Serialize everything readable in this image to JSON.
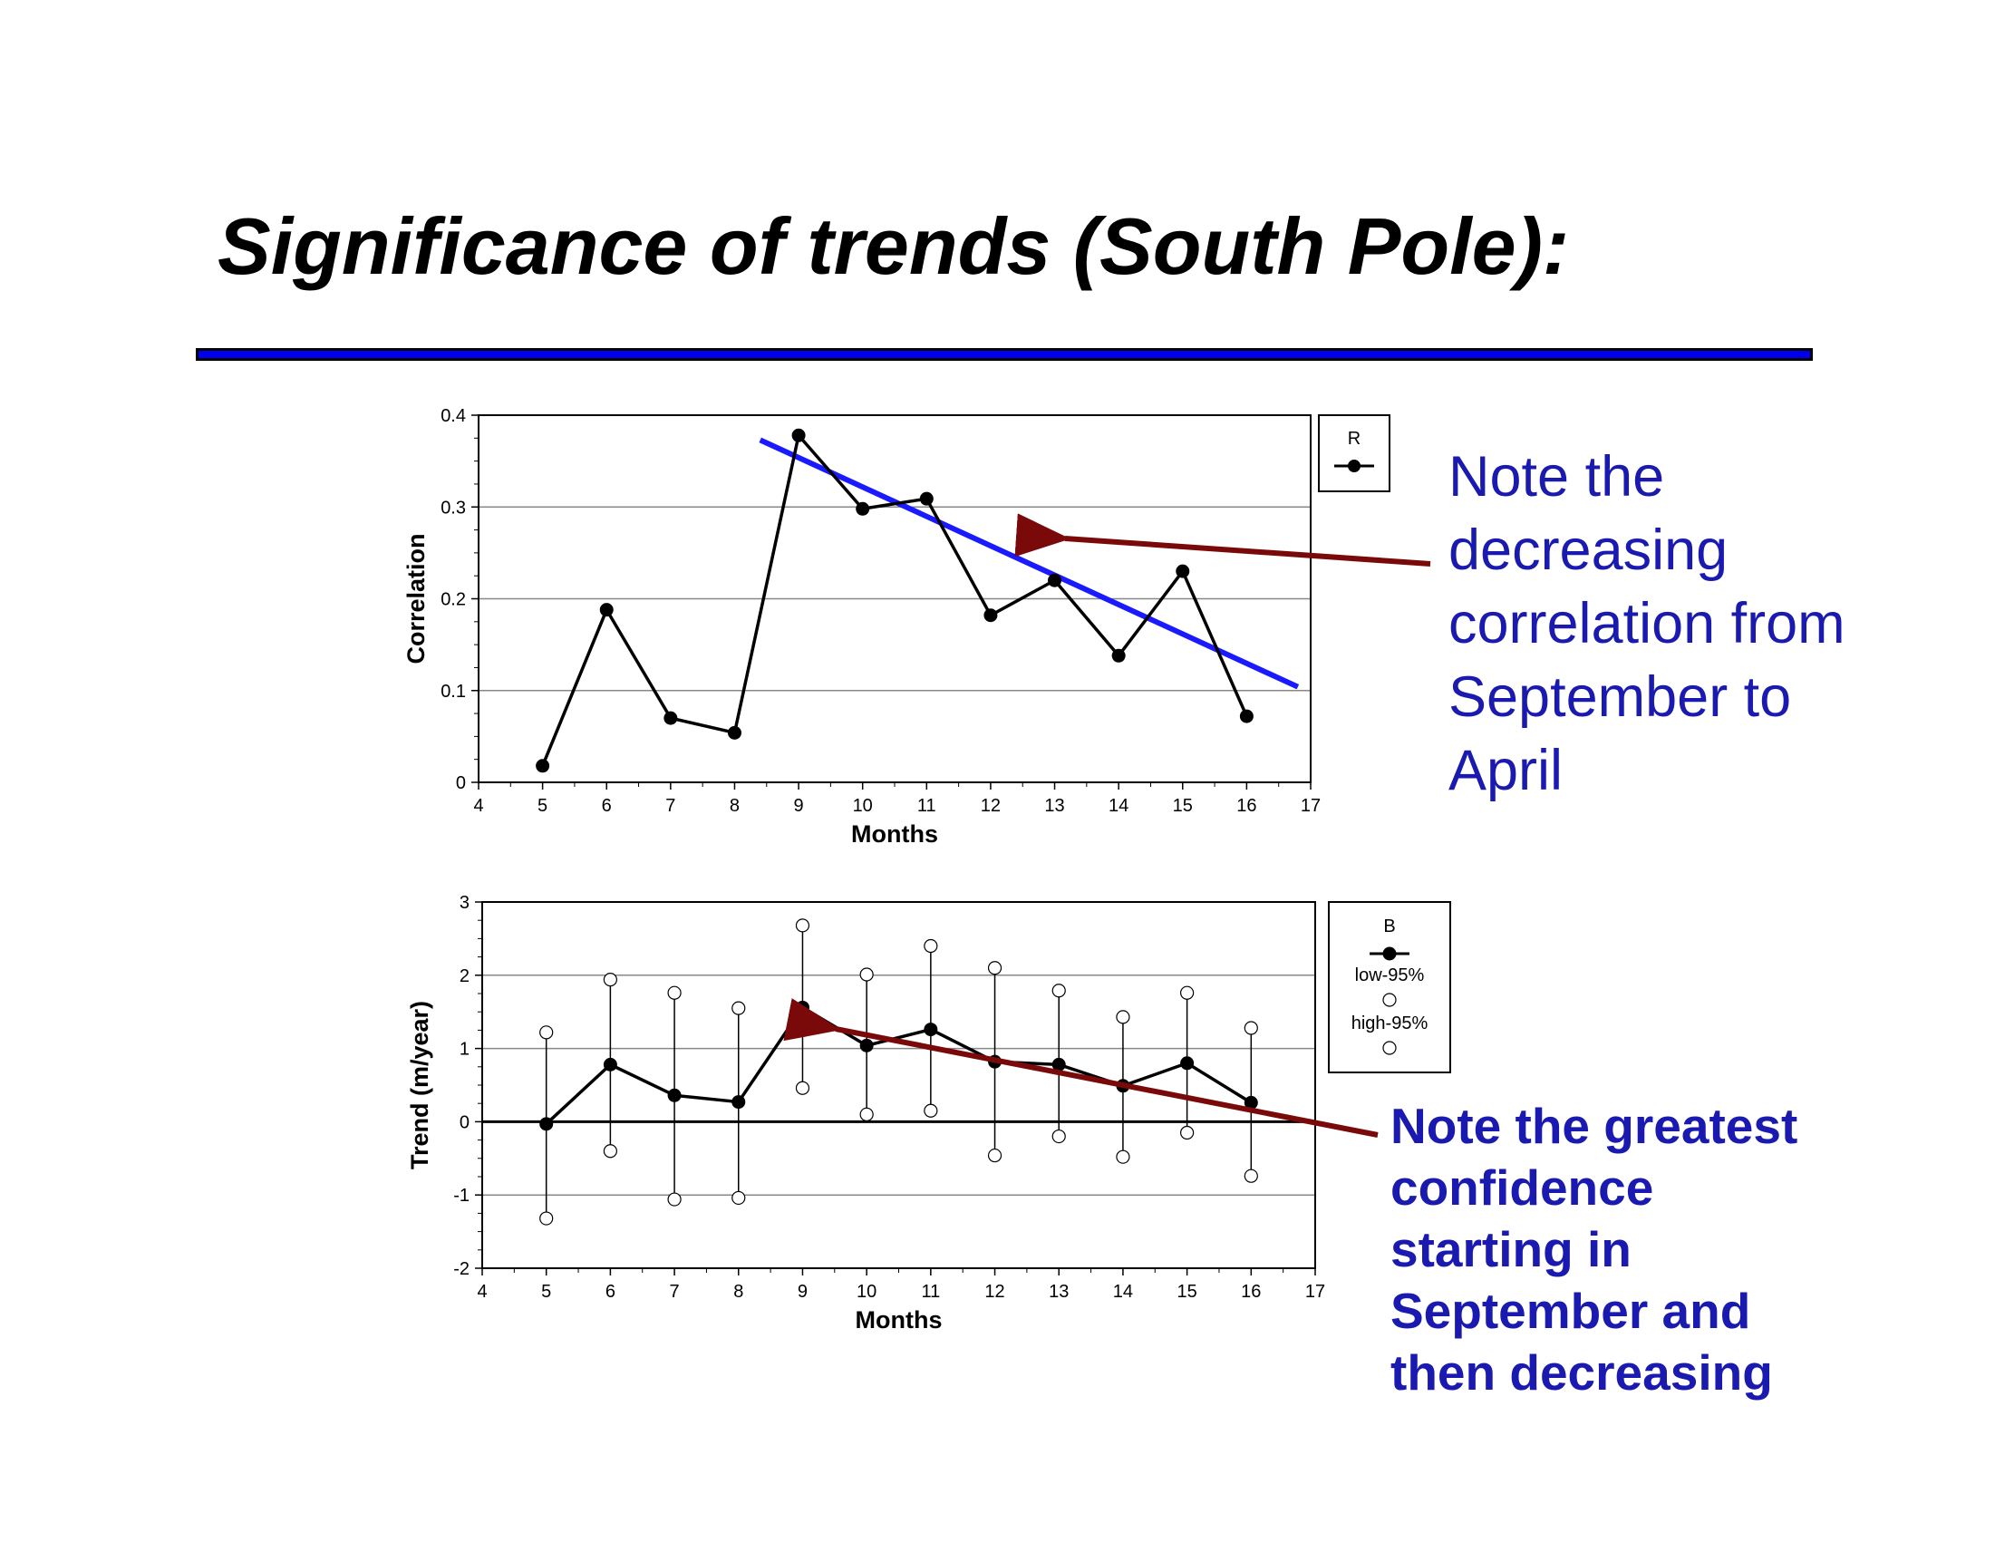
{
  "slide": {
    "title": "Significance of trends (South Pole):",
    "colors": {
      "title_rule": "#0000ee",
      "note_text": "#1a1ab0",
      "arrow": "#7a0a0a",
      "trend_line": "#1a1aff"
    }
  },
  "notes": {
    "top": [
      "Note the",
      "decreasing",
      "correlation from",
      "September to",
      "April"
    ],
    "bottom": [
      "Note the greatest",
      "confidence",
      "starting in",
      "September and",
      "then decreasing"
    ]
  },
  "chart_data": [
    {
      "type": "line",
      "xlabel": "Months",
      "ylabel": "Correlation",
      "xlim": [
        4,
        17
      ],
      "ylim": [
        0,
        0.4
      ],
      "xticks": [
        "4",
        "5",
        "6",
        "7",
        "8",
        "9",
        "10",
        "11",
        "12",
        "13",
        "14",
        "15",
        "16",
        "17"
      ],
      "yticks": [
        "0",
        "0.1",
        "0.2",
        "0.3",
        "0.4"
      ],
      "grid": "horizontal",
      "legend": {
        "title": "R",
        "placement": "right"
      },
      "series": [
        {
          "name": "R",
          "x": [
            5,
            6,
            7,
            8,
            9,
            10,
            11,
            12,
            13,
            14,
            15,
            16
          ],
          "values": [
            0.018,
            0.188,
            0.07,
            0.054,
            0.378,
            0.298,
            0.309,
            0.182,
            0.22,
            0.138,
            0.23,
            0.072
          ]
        }
      ],
      "trend_line": {
        "x": [
          8.4,
          16.8
        ],
        "y": [
          0.373,
          0.104
        ]
      }
    },
    {
      "type": "line",
      "xlabel": "Months",
      "ylabel": "Trend (m/year)",
      "xlim": [
        4,
        17
      ],
      "ylim": [
        -2,
        3
      ],
      "xticks": [
        "4",
        "5",
        "6",
        "7",
        "8",
        "9",
        "10",
        "11",
        "12",
        "13",
        "14",
        "15",
        "16",
        "17"
      ],
      "yticks": [
        "-2",
        "-1",
        "0",
        "1",
        "2",
        "3"
      ],
      "grid": "horizontal",
      "legend": {
        "title": "B",
        "placement": "right"
      },
      "series": [
        {
          "name": "B",
          "x": [
            5,
            6,
            7,
            8,
            9,
            10,
            11,
            12,
            13,
            14,
            15,
            16
          ],
          "values": [
            -0.03,
            0.78,
            0.36,
            0.27,
            1.56,
            1.04,
            1.26,
            0.82,
            0.78,
            0.49,
            0.8,
            0.26
          ]
        },
        {
          "name": "low-95%",
          "x": [
            5,
            6,
            7,
            8,
            9,
            10,
            11,
            12,
            13,
            14,
            15,
            16
          ],
          "values": [
            -1.32,
            -0.4,
            -1.06,
            -1.04,
            0.46,
            0.1,
            0.15,
            -0.46,
            -0.2,
            -0.48,
            -0.15,
            -0.74
          ]
        },
        {
          "name": "high-95%",
          "x": [
            5,
            6,
            7,
            8,
            9,
            10,
            11,
            12,
            13,
            14,
            15,
            16
          ],
          "values": [
            1.22,
            1.94,
            1.76,
            1.55,
            2.68,
            2.01,
            2.4,
            2.1,
            1.79,
            1.43,
            1.76,
            1.28
          ]
        }
      ]
    }
  ]
}
